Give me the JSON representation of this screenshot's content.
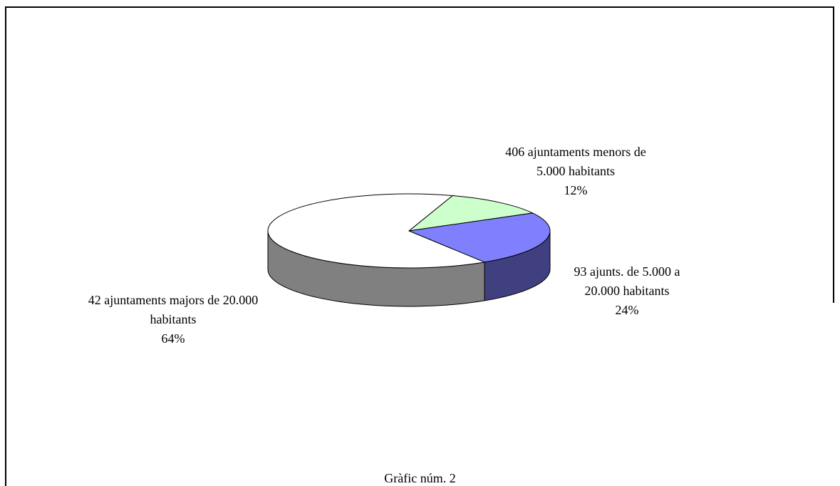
{
  "chart_data": {
    "type": "pie",
    "title": "Gràfic núm. 2",
    "categories": [
      "406 ajuntaments menors de 5.000 habitants",
      "93 ajunts. de 5.000 a 20.000 habitants",
      "42 ajuntaments majors de 20.000 habitants"
    ],
    "values": [
      12,
      24,
      64
    ],
    "value_labels": [
      "12%",
      "24%",
      "64%"
    ],
    "colors": [
      "#ccffcc",
      "#8080ff",
      "#ffffff"
    ],
    "side_colors": [
      "#669966",
      "#404080",
      "#808080"
    ]
  }
}
